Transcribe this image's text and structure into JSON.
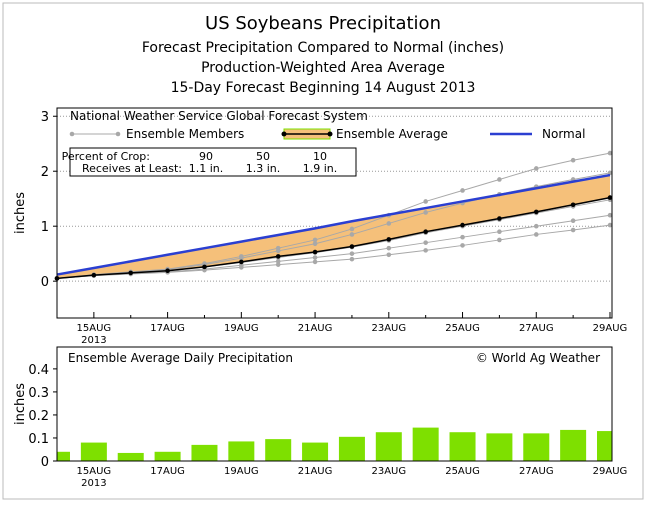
{
  "titles": [
    "US Soybeans Precipitation",
    "Forecast Precipitation Compared to Normal (inches)",
    "Production-Weighted Area Average",
    "15-Day Forecast Beginning 14 August 2013"
  ],
  "chart_data": [
    {
      "type": "line",
      "legend_title": "National Weather Service Global Forecast System",
      "ylabel": "inches",
      "x_sublabel": "2013",
      "categories": [
        null,
        "15AUG",
        null,
        "17AUG",
        null,
        "19AUG",
        null,
        "21AUG",
        null,
        "23AUG",
        null,
        "25AUG",
        null,
        "27AUG",
        null,
        "29AUG"
      ],
      "ylim": [
        -0.67,
        3.15
      ],
      "yticks": [
        0,
        1,
        2,
        3
      ],
      "grid": true,
      "fill_color": "#f5c07a",
      "members": {
        "name": "Ensemble Members",
        "color": "#a8a8a8",
        "runs": [
          [
            0.05,
            0.12,
            0.17,
            0.22,
            0.32,
            0.45,
            0.6,
            0.75,
            0.95,
            1.2,
            1.45,
            1.65,
            1.85,
            2.05,
            2.2,
            2.33
          ],
          [
            0.05,
            0.11,
            0.16,
            0.21,
            0.3,
            0.42,
            0.55,
            0.68,
            0.85,
            1.05,
            1.25,
            1.42,
            1.58,
            1.72,
            1.85,
            1.97
          ],
          [
            0.05,
            0.11,
            0.15,
            0.19,
            0.26,
            0.34,
            0.43,
            0.52,
            0.62,
            0.74,
            0.88,
            1.0,
            1.12,
            1.24,
            1.36,
            1.48
          ],
          [
            0.05,
            0.1,
            0.14,
            0.17,
            0.22,
            0.29,
            0.36,
            0.43,
            0.5,
            0.6,
            0.7,
            0.8,
            0.9,
            1.0,
            1.1,
            1.2
          ],
          [
            0.05,
            0.1,
            0.13,
            0.16,
            0.2,
            0.25,
            0.3,
            0.35,
            0.4,
            0.48,
            0.56,
            0.65,
            0.75,
            0.85,
            0.93,
            1.02
          ]
        ]
      },
      "series": [
        {
          "name": "Ensemble Average",
          "color": "#000000",
          "values": [
            0.05,
            0.11,
            0.15,
            0.19,
            0.26,
            0.35,
            0.45,
            0.53,
            0.63,
            0.76,
            0.9,
            1.02,
            1.14,
            1.26,
            1.39,
            1.52
          ]
        },
        {
          "name": "Normal",
          "color": "#2b3fd1",
          "values": [
            0.12,
            0.24,
            0.36,
            0.48,
            0.6,
            0.72,
            0.84,
            0.96,
            1.09,
            1.21,
            1.33,
            1.45,
            1.57,
            1.69,
            1.81,
            1.93
          ]
        }
      ],
      "table": {
        "rows": [
          [
            "Percent of Crop:",
            "90",
            "50",
            "10"
          ],
          [
            "Receives at Least:",
            "1.1 in.",
            "1.3 in.",
            "1.9 in."
          ]
        ]
      }
    },
    {
      "type": "bar",
      "title": "Ensemble Average Daily Precipitation",
      "credit": "© World Ag Weather",
      "ylabel": "inches",
      "x_sublabel": "2013",
      "color": "#7ee000",
      "categories": [
        null,
        "15AUG",
        null,
        "17AUG",
        null,
        "19AUG",
        null,
        "21AUG",
        null,
        "23AUG",
        null,
        "25AUG",
        null,
        "27AUG",
        null,
        "29AUG"
      ],
      "values": [
        0.04,
        0.08,
        0.035,
        0.04,
        0.07,
        0.085,
        0.095,
        0.08,
        0.105,
        0.125,
        0.145,
        0.125,
        0.12,
        0.12,
        0.135,
        0.13
      ],
      "ylim": [
        0,
        0.495
      ],
      "yticks": [
        0,
        0.1,
        0.2,
        0.3,
        0.4
      ]
    }
  ]
}
